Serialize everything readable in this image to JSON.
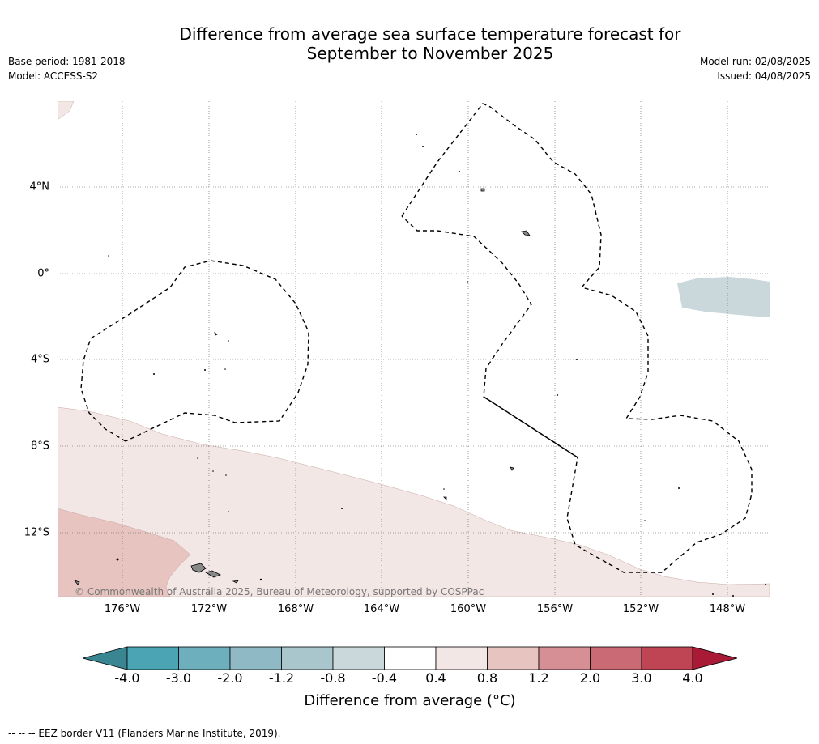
{
  "title_line1": "Difference from average sea surface temperature forecast for",
  "title_line2": "September to November 2025",
  "base_period": "Base period: 1981-2018",
  "model": "Model: ACCESS-S2",
  "model_run": "Model run: 02/08/2025",
  "issued": "Issued: 04/08/2025",
  "copyright": "© Commonwealth of Australia 2025, Bureau of Meteorology, supported by COSPPac",
  "x_labels": [
    "176°W",
    "172°W",
    "168°W",
    "164°W",
    "160°W",
    "156°W",
    "152°W",
    "148°W"
  ],
  "y_labels": [
    "4°N",
    "0°",
    "4°S",
    "8°S",
    "12°S"
  ],
  "colorbar": {
    "label": "Difference from average (°C)",
    "ticks": [
      "-4.0",
      "-3.0",
      "-2.0",
      "-1.2",
      "-0.8",
      "-0.4",
      "0.4",
      "0.8",
      "1.2",
      "2.0",
      "3.0",
      "4.0"
    ],
    "colors": [
      "#3a8592",
      "#4aa4b4",
      "#6dafbd",
      "#8fbac5",
      "#a9c6cd",
      "#cad8dc",
      "#ffffff",
      "#f3e7e5",
      "#e7c4bf",
      "#d58f95",
      "#c96a74",
      "#bf4555",
      "#a81a35"
    ]
  },
  "footnote": "--  --  -- EEZ border V11 (Flanders Marine Institute, 2019).",
  "colors": {
    "warm_light": "#f3e7e5",
    "warm_medium": "#e7c4bf",
    "cool_light": "#cad8dc",
    "land": "#888888"
  }
}
